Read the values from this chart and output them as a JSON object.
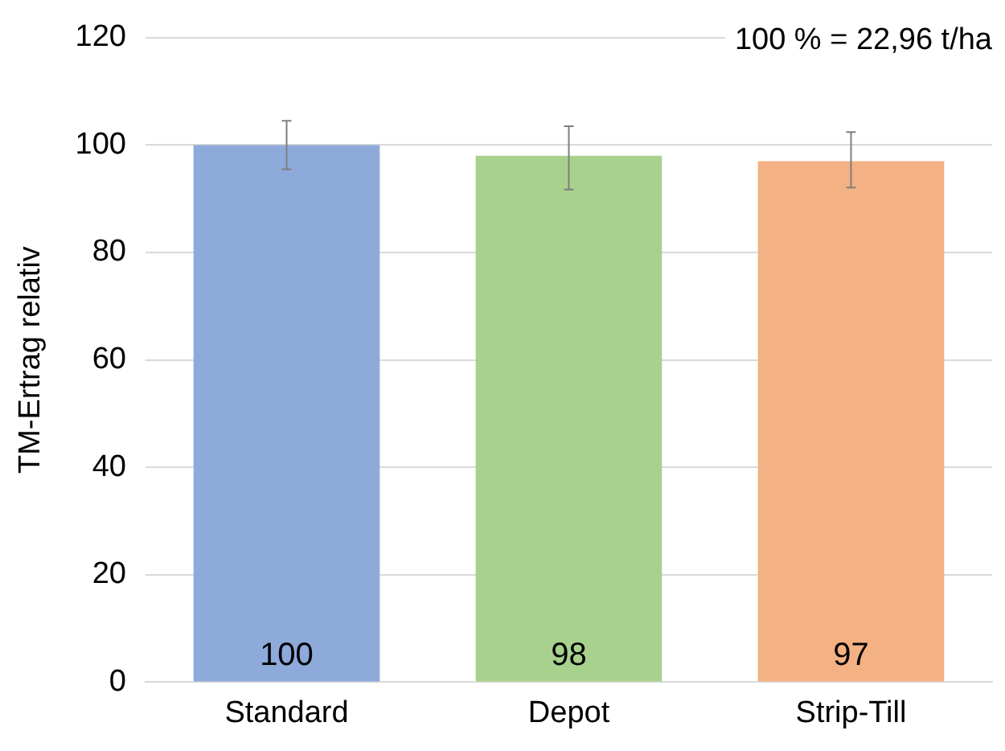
{
  "chart_data": {
    "type": "bar",
    "ylabel": "TM-Ertrag relativ",
    "categories": [
      "Standard",
      "Depot",
      "Strip-Till"
    ],
    "values": [
      100,
      98,
      97
    ],
    "colors": [
      "#8eaadb",
      "#a9d18e",
      "#f4b183"
    ],
    "errors": [
      [
        95.5,
        104.5
      ],
      [
        91.7,
        103.5
      ],
      [
        92.1,
        102.4
      ]
    ],
    "ylim": [
      0,
      120
    ],
    "yticks": [
      0,
      20,
      40,
      60,
      80,
      100,
      120
    ],
    "grid": "y",
    "data_labels": true,
    "annotations": [
      "100 % = 22,96 t/ha"
    ]
  }
}
